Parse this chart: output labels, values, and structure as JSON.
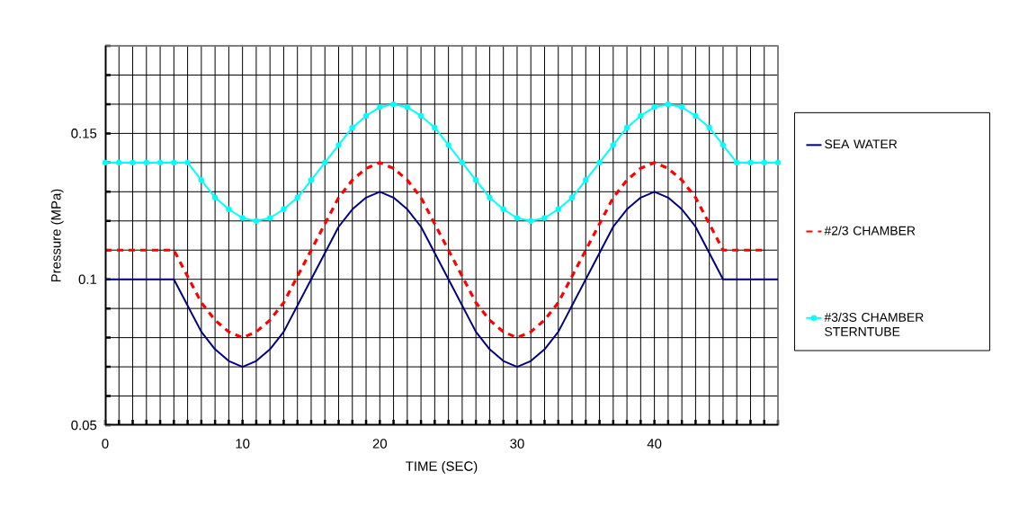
{
  "chart_data": {
    "type": "line",
    "xlabel": "TIME (SEC)",
    "ylabel": "Pressure (MPa)",
    "x": [
      0,
      1,
      2,
      3,
      4,
      5,
      6,
      7,
      8,
      9,
      10,
      11,
      12,
      13,
      14,
      15,
      16,
      17,
      18,
      19,
      20,
      21,
      22,
      23,
      24,
      25,
      26,
      27,
      28,
      29,
      30,
      31,
      32,
      33,
      34,
      35,
      36,
      37,
      38,
      39,
      40,
      41,
      42,
      43,
      44,
      45,
      46,
      47,
      48,
      49
    ],
    "series": [
      {
        "name": "SEA WATER",
        "color": "#000080",
        "line_style": "solid",
        "marker": "none",
        "values": [
          0.1,
          0.1,
          0.1,
          0.1,
          0.1,
          0.1,
          0.091,
          0.082,
          0.076,
          0.072,
          0.07,
          0.072,
          0.076,
          0.082,
          0.091,
          0.1,
          0.109,
          0.118,
          0.124,
          0.128,
          0.13,
          0.128,
          0.124,
          0.118,
          0.109,
          0.1,
          0.091,
          0.082,
          0.076,
          0.072,
          0.07,
          0.072,
          0.076,
          0.082,
          0.091,
          0.1,
          0.109,
          0.118,
          0.124,
          0.128,
          0.13,
          0.128,
          0.124,
          0.118,
          0.109,
          0.1,
          0.1,
          0.1,
          0.1,
          0.1
        ]
      },
      {
        "name": "#2/3 CHAMBER",
        "color": "#ff0000",
        "line_style": "dashed",
        "marker": "none",
        "values": [
          0.11,
          0.11,
          0.11,
          0.11,
          0.11,
          0.11,
          0.101,
          0.092,
          0.086,
          0.082,
          0.08,
          0.082,
          0.086,
          0.092,
          0.101,
          0.11,
          0.119,
          0.128,
          0.134,
          0.138,
          0.14,
          0.138,
          0.134,
          0.128,
          0.119,
          0.11,
          0.101,
          0.092,
          0.086,
          0.082,
          0.08,
          0.082,
          0.086,
          0.092,
          0.101,
          0.11,
          0.119,
          0.128,
          0.134,
          0.138,
          0.14,
          0.138,
          0.134,
          0.128,
          0.119,
          0.11,
          0.11,
          0.11,
          0.11,
          null
        ]
      },
      {
        "name": "#3/3S CHAMBER STERNTUBE",
        "color": "#00ffff",
        "line_style": "solid",
        "marker": "circle",
        "values": [
          0.14,
          0.14,
          0.14,
          0.14,
          0.14,
          0.14,
          0.14,
          0.134,
          0.128,
          0.124,
          0.121,
          0.12,
          0.121,
          0.124,
          0.128,
          0.134,
          0.14,
          0.146,
          0.152,
          0.156,
          0.159,
          0.16,
          0.159,
          0.156,
          0.152,
          0.146,
          0.14,
          0.134,
          0.128,
          0.124,
          0.121,
          0.12,
          0.121,
          0.124,
          0.128,
          0.134,
          0.14,
          0.146,
          0.152,
          0.156,
          0.159,
          0.16,
          0.159,
          0.156,
          0.152,
          0.146,
          0.14,
          0.14,
          0.14,
          0.14
        ]
      }
    ],
    "xlim": [
      0,
      49
    ],
    "xticks": [
      0,
      {
        "value": 1,
        "label": null
      },
      {
        "value": 2,
        "label": null
      },
      {
        "value": 3,
        "label": null
      },
      {
        "value": 4,
        "label": null
      },
      {
        "value": 5,
        "label": null
      },
      {
        "value": 6,
        "label": null
      },
      {
        "value": 7,
        "label": null
      },
      {
        "value": 8,
        "label": null
      },
      {
        "value": 9,
        "label": null
      },
      10,
      {
        "value": 11,
        "label": null
      },
      {
        "value": 12,
        "label": null
      },
      {
        "value": 13,
        "label": null
      },
      {
        "value": 14,
        "label": null
      },
      {
        "value": 15,
        "label": null
      },
      {
        "value": 16,
        "label": null
      },
      {
        "value": 17,
        "label": null
      },
      {
        "value": 18,
        "label": null
      },
      {
        "value": 19,
        "label": null
      },
      20,
      {
        "value": 21,
        "label": null
      },
      {
        "value": 22,
        "label": null
      },
      {
        "value": 23,
        "label": null
      },
      {
        "value": 24,
        "label": null
      },
      {
        "value": 25,
        "label": null
      },
      {
        "value": 26,
        "label": null
      },
      {
        "value": 27,
        "label": null
      },
      {
        "value": 28,
        "label": null
      },
      {
        "value": 29,
        "label": null
      },
      30,
      {
        "value": 31,
        "label": null
      },
      {
        "value": 32,
        "label": null
      },
      {
        "value": 33,
        "label": null
      },
      {
        "value": 34,
        "label": null
      },
      {
        "value": 35,
        "label": null
      },
      {
        "value": 36,
        "label": null
      },
      {
        "value": 37,
        "label": null
      },
      {
        "value": 38,
        "label": null
      },
      {
        "value": 39,
        "label": null
      },
      40,
      {
        "value": 41,
        "label": null
      },
      {
        "value": 42,
        "label": null
      },
      {
        "value": 43,
        "label": null
      },
      {
        "value": 44,
        "label": null
      },
      {
        "value": 45,
        "label": null
      },
      {
        "value": 46,
        "label": null
      },
      {
        "value": 47,
        "label": null
      },
      {
        "value": 48,
        "label": null
      },
      {
        "value": 49,
        "label": null
      }
    ],
    "ylim": [
      0.05,
      0.18
    ],
    "yticks": [
      0.05,
      {
        "value": 0.06,
        "label": null
      },
      {
        "value": 0.07,
        "label": null
      },
      {
        "value": 0.08,
        "label": null
      },
      {
        "value": 0.09,
        "label": null
      },
      0.1,
      {
        "value": 0.11,
        "label": null
      },
      {
        "value": 0.12,
        "label": null
      },
      {
        "value": 0.13,
        "label": null
      },
      {
        "value": 0.14,
        "label": null
      },
      0.15,
      {
        "value": 0.16,
        "label": null
      },
      {
        "value": 0.17,
        "label": null
      },
      {
        "value": 0.18,
        "label": null
      }
    ],
    "grid": true,
    "legend": "right"
  }
}
